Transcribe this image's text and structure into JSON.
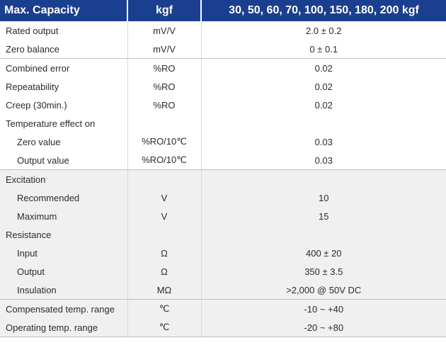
{
  "header": {
    "label": "Max. Capacity",
    "unit": "kgf",
    "value": "30, 50, 60, 70, 100, 150, 180, 200 kgf"
  },
  "rows": [
    {
      "label": "Rated output",
      "unit": "mV/V",
      "value": "2.0 ± 0.2",
      "shaded": false,
      "indent": false,
      "group_start": false
    },
    {
      "label": "Zero balance",
      "unit": "mV/V",
      "value": "0 ± 0.1",
      "shaded": false,
      "indent": false,
      "group_start": false
    },
    {
      "label": "Combined error",
      "unit": "%RO",
      "value": "0.02",
      "shaded": false,
      "indent": false,
      "group_start": true
    },
    {
      "label": "Repeatability",
      "unit": "%RO",
      "value": "0.02",
      "shaded": false,
      "indent": false,
      "group_start": false
    },
    {
      "label": "Creep (30min.)",
      "unit": "%RO",
      "value": "0.02",
      "shaded": false,
      "indent": false,
      "group_start": false
    },
    {
      "label": "Temperature effect on",
      "unit": "",
      "value": "",
      "shaded": false,
      "indent": false,
      "group_start": false
    },
    {
      "label": "Zero value",
      "unit": "%RO/10℃",
      "value": "0.03",
      "shaded": false,
      "indent": true,
      "group_start": false
    },
    {
      "label": "Output  value",
      "unit": "%RO/10℃",
      "value": "0.03",
      "shaded": false,
      "indent": true,
      "group_start": false
    },
    {
      "label": "Excitation",
      "unit": "",
      "value": "",
      "shaded": true,
      "indent": false,
      "group_start": true
    },
    {
      "label": "Recommended",
      "unit": "V",
      "value": "10",
      "shaded": true,
      "indent": true,
      "group_start": false
    },
    {
      "label": "Maximum",
      "unit": "V",
      "value": "15",
      "shaded": true,
      "indent": true,
      "group_start": false
    },
    {
      "label": "Resistance",
      "unit": "",
      "value": "",
      "shaded": true,
      "indent": false,
      "group_start": false
    },
    {
      "label": "Input",
      "unit": "Ω",
      "value": "400 ± 20",
      "shaded": true,
      "indent": true,
      "group_start": false
    },
    {
      "label": "Output",
      "unit": "Ω",
      "value": "350 ± 3.5",
      "shaded": true,
      "indent": true,
      "group_start": false
    },
    {
      "label": "Insulation",
      "unit": "MΩ",
      "value": ">2,000 @ 50V DC",
      "shaded": true,
      "indent": true,
      "group_start": false
    },
    {
      "label": "Compensated temp. range",
      "unit": "℃",
      "value": "-10 ~ +40",
      "shaded": true,
      "indent": false,
      "group_start": true
    },
    {
      "label": "Operating temp. range",
      "unit": "℃",
      "value": "-20 ~ +80",
      "shaded": true,
      "indent": false,
      "group_start": false
    }
  ],
  "colors": {
    "header_bg": "#1b3f8f",
    "header_text": "#ffffff",
    "shaded_bg": "#f0f0f0",
    "text": "#2b2b2b"
  }
}
